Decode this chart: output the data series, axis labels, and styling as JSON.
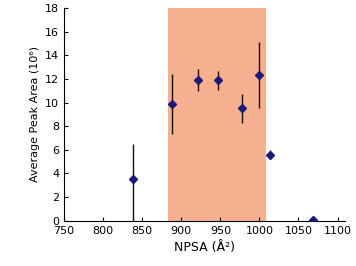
{
  "x": [
    838,
    888,
    922,
    947,
    978,
    1000,
    1013,
    1068
  ],
  "y": [
    3.5,
    9.9,
    11.9,
    11.9,
    9.5,
    12.3,
    5.6,
    0.1
  ],
  "yerr_low": [
    3.5,
    2.6,
    0.9,
    0.8,
    1.2,
    2.8,
    0.4,
    0.05
  ],
  "yerr_high": [
    3.0,
    2.5,
    0.9,
    0.8,
    1.2,
    2.8,
    0.35,
    0.05
  ],
  "highlight_x_start": 883,
  "highlight_x_end": 1008,
  "highlight_color": "#F4956A",
  "highlight_alpha": 0.75,
  "point_color": "#1a1a7a",
  "point_size": 4,
  "ecolor": "#111111",
  "xlim": [
    750,
    1110
  ],
  "ylim": [
    0,
    18
  ],
  "xticks": [
    750,
    800,
    850,
    900,
    950,
    1000,
    1050,
    1100
  ],
  "yticks": [
    0,
    2,
    4,
    6,
    8,
    10,
    12,
    14,
    16,
    18
  ],
  "xlabel": "NPSA (Å²)",
  "ylabel": "Average Peak Area (10⁶)",
  "figsize": [
    3.56,
    2.66
  ],
  "dpi": 100
}
